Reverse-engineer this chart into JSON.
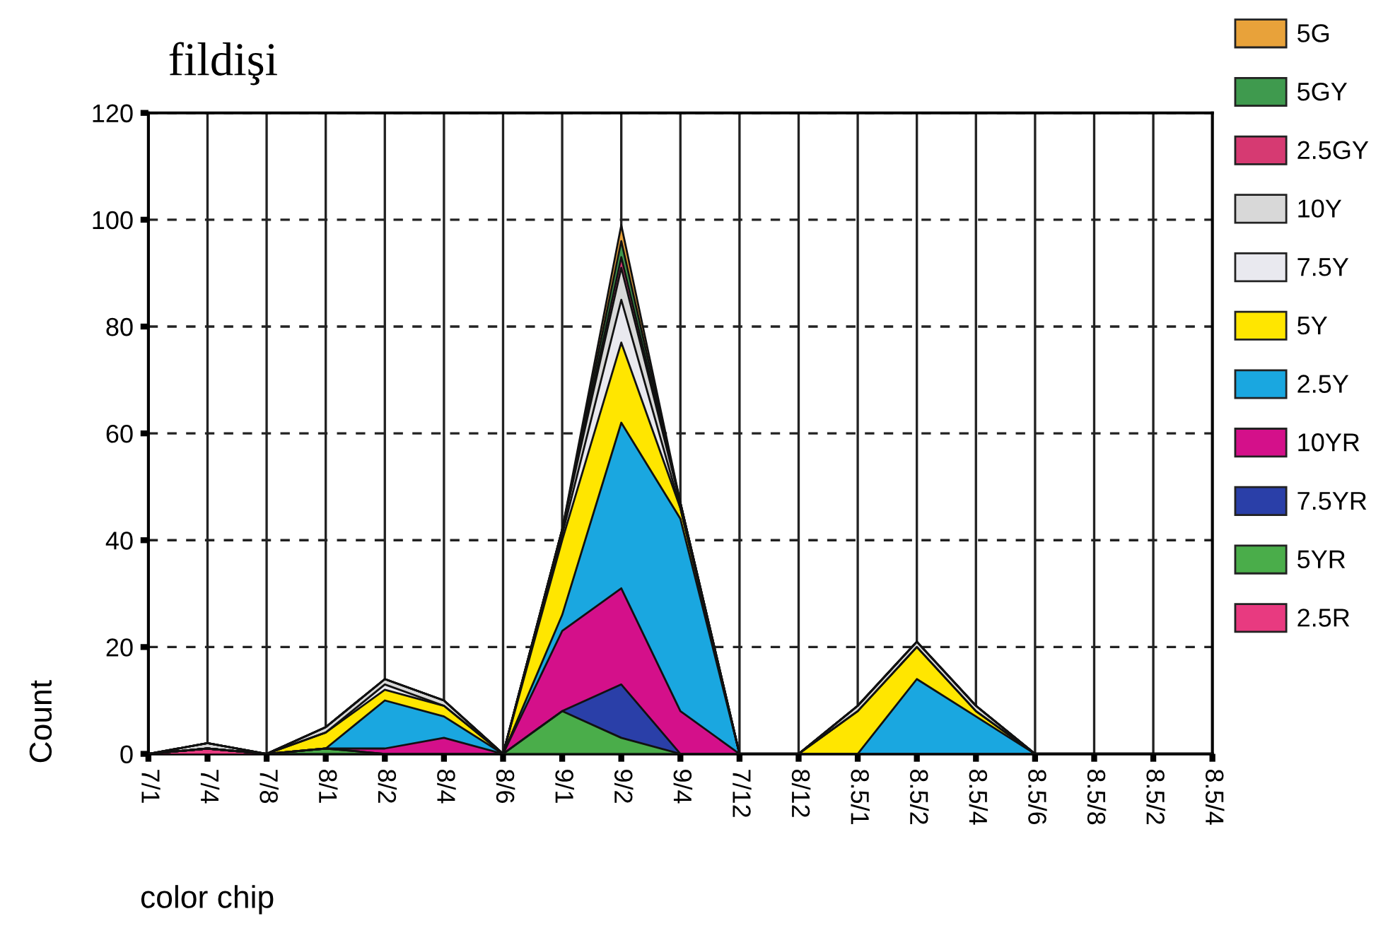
{
  "chart_data": {
    "type": "area",
    "stacked": true,
    "title": "fildişi",
    "xlabel": "color chip",
    "ylabel": "Count",
    "categories": [
      "7/1",
      "7/4",
      "7/8",
      "8/1",
      "8/2",
      "8/4",
      "8/6",
      "9/1",
      "9/2",
      "9/4",
      "7/12",
      "8/12",
      "8.5/1",
      "8.5/2",
      "8.5/4",
      "8.5/6",
      "8.5/8",
      "8.5/2",
      "8.5/4"
    ],
    "series": [
      {
        "name": "2.5R",
        "color": "#e83a80",
        "values": [
          0,
          1,
          0,
          0,
          0,
          0,
          0,
          0,
          0,
          0,
          0,
          0,
          0,
          0,
          0,
          0,
          0,
          0,
          0
        ]
      },
      {
        "name": "5YR",
        "color": "#4aad4a",
        "values": [
          0,
          0,
          0,
          1,
          0,
          0,
          0,
          8,
          3,
          0,
          0,
          0,
          0,
          0,
          0,
          0,
          0,
          0,
          0
        ]
      },
      {
        "name": "7.5YR",
        "color": "#2a3fa8",
        "values": [
          0,
          0,
          0,
          0,
          0,
          0,
          0,
          0,
          10,
          0,
          0,
          0,
          0,
          0,
          0,
          0,
          0,
          0,
          0
        ]
      },
      {
        "name": "10YR",
        "color": "#d4108a",
        "values": [
          0,
          0,
          0,
          0,
          1,
          3,
          0,
          15,
          18,
          8,
          0,
          0,
          0,
          0,
          0,
          0,
          0,
          0,
          0
        ]
      },
      {
        "name": "2.5Y",
        "color": "#1aa7e0",
        "values": [
          0,
          0,
          0,
          0,
          9,
          4,
          0,
          3,
          31,
          36,
          0,
          0,
          0,
          14,
          7,
          0,
          0,
          0,
          0
        ]
      },
      {
        "name": "5Y",
        "color": "#ffe600",
        "values": [
          0,
          0,
          0,
          3,
          2,
          2,
          0,
          14,
          15,
          2,
          0,
          0,
          8,
          6,
          1,
          0,
          0,
          0,
          0
        ]
      },
      {
        "name": "7.5Y",
        "color": "#e9e9ef",
        "values": [
          0,
          0,
          0,
          0,
          1,
          0,
          0,
          1,
          8,
          0,
          0,
          0,
          0,
          0,
          0,
          0,
          0,
          0,
          0
        ]
      },
      {
        "name": "10Y",
        "color": "#d8d8d8",
        "values": [
          0,
          1,
          0,
          1,
          1,
          1,
          0,
          1,
          6,
          1,
          0,
          0,
          1,
          1,
          1,
          0,
          0,
          0,
          0
        ]
      },
      {
        "name": "2.5GY",
        "color": "#d63a72",
        "values": [
          0,
          0,
          0,
          0,
          0,
          0,
          0,
          0,
          2,
          0,
          0,
          0,
          0,
          0,
          0,
          0,
          0,
          0,
          0
        ]
      },
      {
        "name": "5GY",
        "color": "#3f9a4e",
        "values": [
          0,
          0,
          0,
          0,
          0,
          0,
          0,
          0,
          3,
          0,
          0,
          0,
          0,
          0,
          0,
          0,
          0,
          0,
          0
        ]
      },
      {
        "name": "5G",
        "color": "#e8a23a",
        "values": [
          0,
          0,
          0,
          0,
          0,
          0,
          0,
          0,
          3,
          0,
          0,
          0,
          0,
          0,
          0,
          0,
          0,
          0,
          0
        ]
      }
    ],
    "ylim": [
      0,
      120
    ],
    "yticks": [
      0,
      20,
      40,
      60,
      80,
      100,
      120
    ],
    "grid": true,
    "legend": "right"
  }
}
